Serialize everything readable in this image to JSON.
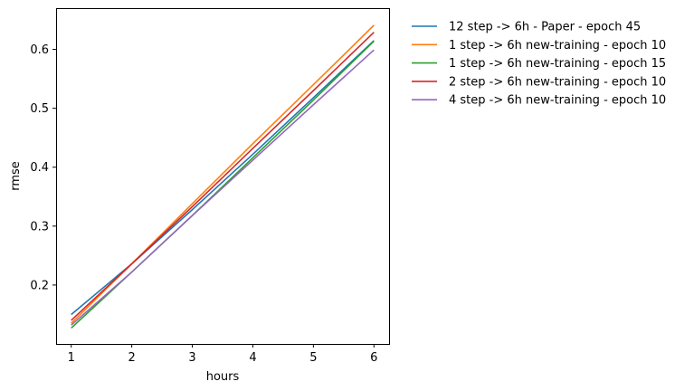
{
  "chart_data": {
    "type": "line",
    "title": "",
    "xlabel": "hours",
    "ylabel": "rmse",
    "xlim": [
      0.75,
      6.25
    ],
    "ylim": [
      0.1,
      0.67
    ],
    "xticks": [
      1,
      2,
      3,
      4,
      5,
      6
    ],
    "yticks": [
      0.2,
      0.3,
      0.4,
      0.5,
      0.6
    ],
    "grid": false,
    "legend_position": "outside-right-top",
    "x": [
      1,
      2,
      3,
      4,
      5,
      6
    ],
    "series": [
      {
        "name": "12 step -> 6h - Paper - epoch 45",
        "color": "#1f77b4",
        "values": [
          0.15,
          0.236,
          0.328,
          0.422,
          0.518,
          0.615
        ]
      },
      {
        "name": "1 step -> 6h new-training - epoch 10",
        "color": "#ff7f0e",
        "values": [
          0.135,
          0.236,
          0.338,
          0.44,
          0.54,
          0.641
        ]
      },
      {
        "name": "1 step -> 6h new-training - epoch 15",
        "color": "#2ca02c",
        "values": [
          0.127,
          0.222,
          0.318,
          0.416,
          0.514,
          0.614
        ]
      },
      {
        "name": "2 step -> 6h new-training - epoch 10",
        "color": "#d62728",
        "values": [
          0.14,
          0.236,
          0.333,
          0.432,
          0.53,
          0.629
        ]
      },
      {
        "name": "4 step -> 6h new-training - epoch 10",
        "color": "#9467bd",
        "values": [
          0.132,
          0.222,
          0.318,
          0.412,
          0.506,
          0.599
        ]
      }
    ]
  }
}
